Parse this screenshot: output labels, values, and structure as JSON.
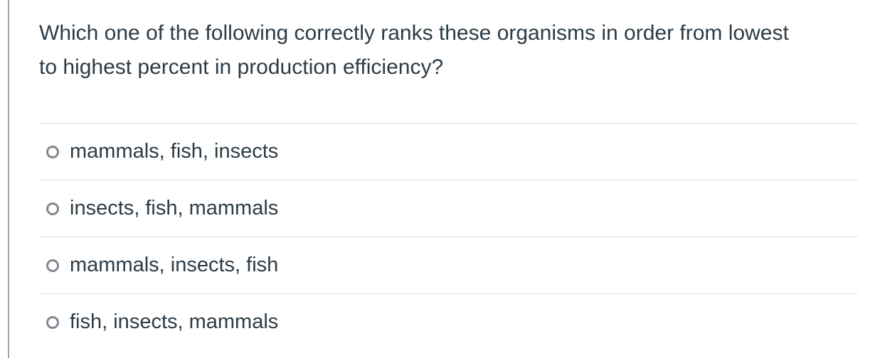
{
  "colors": {
    "text": "#2d3b45",
    "radio_ring": "#85858f",
    "divider": "#dcdcdc",
    "left_border": "#a3a3a3"
  },
  "question": {
    "text": "Which one of the following correctly ranks these organisms in order from lowest to highest percent in production efficiency?"
  },
  "answers": [
    {
      "label": "mammals, fish, insects",
      "selected": false
    },
    {
      "label": "insects, fish, mammals",
      "selected": false
    },
    {
      "label": "mammals, insects, fish",
      "selected": false
    },
    {
      "label": "fish, insects, mammals",
      "selected": false
    }
  ]
}
